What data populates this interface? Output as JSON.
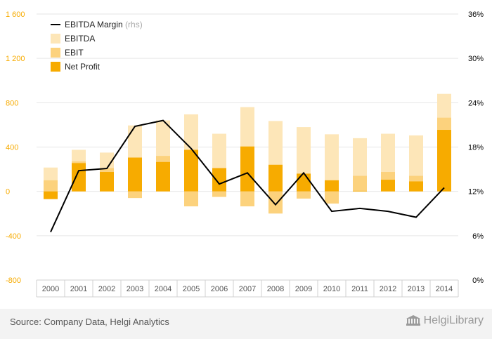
{
  "chart_data": {
    "type": "bar",
    "categories": [
      "2000",
      "2001",
      "2002",
      "2003",
      "2004",
      "2005",
      "2006",
      "2007",
      "2008",
      "2009",
      "2010",
      "2011",
      "2012",
      "2013",
      "2014"
    ],
    "series": [
      {
        "name": "EBITDA",
        "kind": "bar",
        "axis": "left",
        "color": "#fde6b8",
        "values": [
          215,
          375,
          350,
          595,
          640,
          695,
          520,
          760,
          635,
          580,
          515,
          480,
          520,
          505,
          880
        ]
      },
      {
        "name": "EBIT",
        "kind": "bar",
        "axis": "left",
        "color": "#fcd27d",
        "values": [
          100,
          270,
          210,
          -60,
          320,
          -135,
          -50,
          -135,
          -200,
          -65,
          -110,
          140,
          175,
          140,
          665
        ]
      },
      {
        "name": "Net Profit",
        "kind": "bar",
        "axis": "left",
        "color": "#f7ab00",
        "values": [
          -70,
          255,
          175,
          305,
          265,
          375,
          210,
          405,
          240,
          160,
          100,
          5,
          105,
          90,
          555
        ]
      },
      {
        "name": "EBITDA Margin",
        "name_suffix": "(rhs)",
        "kind": "line",
        "axis": "right",
        "color": "#000000",
        "values": [
          6.5,
          14.8,
          15.1,
          20.8,
          21.6,
          17.8,
          13.0,
          14.5,
          10.2,
          14.5,
          9.3,
          9.7,
          9.3,
          8.5,
          12.5
        ]
      }
    ],
    "y_left": {
      "min": -800,
      "max": 1600,
      "ticks": [
        "-800",
        "-400",
        "0",
        "400",
        "800",
        "1 200",
        "1 600"
      ],
      "tick_values": [
        -800,
        -400,
        0,
        400,
        800,
        1200,
        1600
      ],
      "color": "#f7ab00"
    },
    "y_right": {
      "min": 0,
      "max": 36,
      "ticks": [
        "0%",
        "6%",
        "12%",
        "18%",
        "24%",
        "30%",
        "36%"
      ],
      "tick_values": [
        0,
        6,
        12,
        18,
        24,
        30,
        36
      ],
      "color": "#000000"
    },
    "grid": true,
    "legend_position": "top-left"
  },
  "footer": {
    "source": "Source: Company Data, Helgi Analytics",
    "brand": "HelgiLibrary"
  },
  "colors": {
    "grid": "#e6e6e6",
    "axis_box_border": "#d0d0d0",
    "tick_label": "#555555"
  }
}
